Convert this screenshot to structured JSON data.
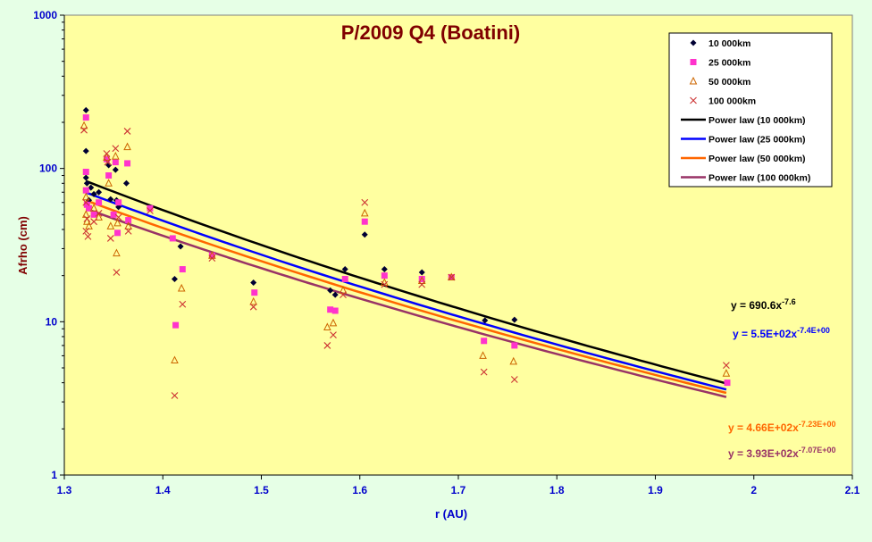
{
  "colors": {
    "background": "#e6ffe6",
    "plot_background": "#ffffa0",
    "title": "#800000",
    "axis_text": "#0000cc",
    "ylabel": "#800000",
    "xlabel": "#0000cc"
  },
  "chart_data": {
    "type": "scatter",
    "title": "P/2009 Q4 (Boatini)",
    "xlabel": "r (AU)",
    "ylabel": "Afrho (cm)",
    "xlim": [
      1.3,
      2.1
    ],
    "ylim": [
      1,
      1000
    ],
    "yscale": "log",
    "xticks": [
      "1.3",
      "1.4",
      "1.5",
      "1.6",
      "1.7",
      "1.8",
      "1.9",
      "2",
      "2.1"
    ],
    "yticks": [
      "1",
      "10",
      "100",
      "1000"
    ],
    "grid": false,
    "legend_position": "top-right",
    "series": [
      {
        "name": "10 000km",
        "color": "#000033",
        "marker": "diamond",
        "points": [
          [
            1.322,
            240
          ],
          [
            1.322,
            130
          ],
          [
            1.322,
            87
          ],
          [
            1.322,
            72
          ],
          [
            1.323,
            80
          ],
          [
            1.325,
            62
          ],
          [
            1.327,
            75
          ],
          [
            1.33,
            68
          ],
          [
            1.335,
            70
          ],
          [
            1.345,
            105
          ],
          [
            1.347,
            63
          ],
          [
            1.352,
            98
          ],
          [
            1.353,
            62
          ],
          [
            1.355,
            56
          ],
          [
            1.363,
            80
          ],
          [
            1.412,
            19
          ],
          [
            1.418,
            31
          ],
          [
            1.45,
            27
          ],
          [
            1.492,
            18
          ],
          [
            1.57,
            16
          ],
          [
            1.575,
            15
          ],
          [
            1.585,
            22
          ],
          [
            1.605,
            37
          ],
          [
            1.625,
            22
          ],
          [
            1.663,
            21
          ],
          [
            1.727,
            10.2
          ],
          [
            1.757,
            10.3
          ],
          [
            1.972,
            4
          ]
        ]
      },
      {
        "name": "25 000km",
        "color": "#ff33cc",
        "marker": "square",
        "points": [
          [
            1.322,
            215
          ],
          [
            1.322,
            95
          ],
          [
            1.322,
            72
          ],
          [
            1.323,
            58
          ],
          [
            1.325,
            55
          ],
          [
            1.33,
            50
          ],
          [
            1.335,
            60
          ],
          [
            1.343,
            115
          ],
          [
            1.345,
            90
          ],
          [
            1.35,
            50
          ],
          [
            1.352,
            110
          ],
          [
            1.354,
            38
          ],
          [
            1.355,
            60
          ],
          [
            1.364,
            108
          ],
          [
            1.365,
            46
          ],
          [
            1.387,
            55
          ],
          [
            1.41,
            35
          ],
          [
            1.413,
            9.5
          ],
          [
            1.42,
            22
          ],
          [
            1.45,
            27
          ],
          [
            1.493,
            15.5
          ],
          [
            1.57,
            12
          ],
          [
            1.575,
            11.8
          ],
          [
            1.585,
            19
          ],
          [
            1.605,
            45
          ],
          [
            1.625,
            20
          ],
          [
            1.663,
            19
          ],
          [
            1.693,
            19.5
          ],
          [
            1.726,
            7.5
          ],
          [
            1.757,
            7
          ],
          [
            1.973,
            4
          ]
        ]
      },
      {
        "name": "50 000km",
        "color": "#cc6600",
        "marker": "triangle",
        "points": [
          [
            1.32,
            190
          ],
          [
            1.322,
            65
          ],
          [
            1.322,
            50
          ],
          [
            1.323,
            45
          ],
          [
            1.325,
            42
          ],
          [
            1.33,
            55
          ],
          [
            1.335,
            48
          ],
          [
            1.343,
            118
          ],
          [
            1.345,
            80
          ],
          [
            1.347,
            42
          ],
          [
            1.352,
            120
          ],
          [
            1.353,
            28
          ],
          [
            1.354,
            44
          ],
          [
            1.364,
            138
          ],
          [
            1.365,
            42
          ],
          [
            1.412,
            5.6
          ],
          [
            1.419,
            16.5
          ],
          [
            1.45,
            27
          ],
          [
            1.492,
            13.5
          ],
          [
            1.567,
            9.2
          ],
          [
            1.573,
            9.8
          ],
          [
            1.583,
            16
          ],
          [
            1.605,
            51
          ],
          [
            1.625,
            18
          ],
          [
            1.663,
            18.5
          ],
          [
            1.693,
            19.5
          ],
          [
            1.725,
            6
          ],
          [
            1.756,
            5.5
          ],
          [
            1.972,
            4.6
          ]
        ]
      },
      {
        "name": "100 000km",
        "color": "#cc3333",
        "marker": "x",
        "points": [
          [
            1.32,
            178
          ],
          [
            1.322,
            60
          ],
          [
            1.323,
            47
          ],
          [
            1.322,
            39
          ],
          [
            1.324,
            36
          ],
          [
            1.33,
            45
          ],
          [
            1.335,
            51
          ],
          [
            1.343,
            125
          ],
          [
            1.344,
            110
          ],
          [
            1.347,
            35
          ],
          [
            1.352,
            135
          ],
          [
            1.353,
            21
          ],
          [
            1.355,
            48
          ],
          [
            1.364,
            175
          ],
          [
            1.365,
            39
          ],
          [
            1.387,
            53
          ],
          [
            1.412,
            3.3
          ],
          [
            1.42,
            13
          ],
          [
            1.45,
            26
          ],
          [
            1.492,
            12.5
          ],
          [
            1.567,
            7
          ],
          [
            1.573,
            8.2
          ],
          [
            1.583,
            15
          ],
          [
            1.605,
            60
          ],
          [
            1.625,
            17.5
          ],
          [
            1.663,
            17.5
          ],
          [
            1.693,
            19.5
          ],
          [
            1.726,
            4.7
          ],
          [
            1.757,
            4.2
          ],
          [
            1.972,
            5.2
          ]
        ]
      }
    ],
    "trendlines": [
      {
        "name": "Power law (10 000km)",
        "color": "#000000",
        "a": 690.6,
        "b": -7.6,
        "x_range": [
          1.322,
          1.972
        ],
        "equation": "y = 690.6x",
        "exponent": "-7.6",
        "equation_color": "#000000"
      },
      {
        "name": "Power law (25 000km)",
        "color": "#0000ff",
        "a": 550,
        "b": -7.4,
        "x_range": [
          1.322,
          1.972
        ],
        "equation": "y = 5.5E+02x",
        "exponent": "-7.4E+00",
        "equation_color": "#0000ff"
      },
      {
        "name": "Power law (50 000km)",
        "color": "#ff6600",
        "a": 466,
        "b": -7.23,
        "x_range": [
          1.322,
          1.972
        ],
        "equation": "y = 4.66E+02x",
        "exponent": "-7.23E+00",
        "equation_color": "#ff6600"
      },
      {
        "name": "Power law (100 000km)",
        "color": "#993366",
        "a": 393,
        "b": -7.07,
        "x_range": [
          1.322,
          1.972
        ],
        "equation": "y = 3.93E+02x",
        "exponent": "-7.07E+00",
        "equation_color": "#993366"
      }
    ]
  }
}
